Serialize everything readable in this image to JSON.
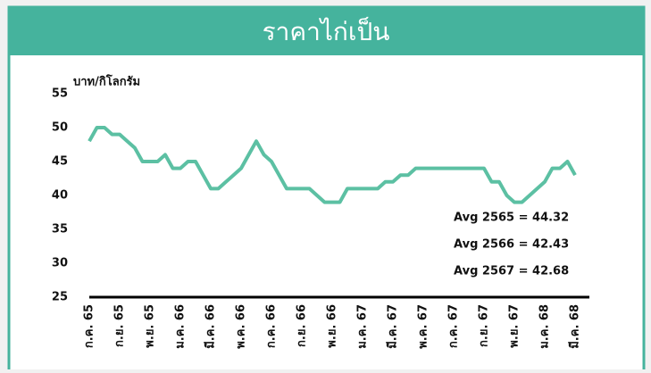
{
  "chart_data": {
    "type": "line",
    "title": "ราคาไก่เป็น",
    "y_label": "บาท/กิโลกรัม",
    "categories": [
      "ก.ค. 65",
      null,
      null,
      null,
      "ก.ย. 65",
      null,
      null,
      null,
      "พ.ย. 65",
      null,
      null,
      null,
      "ม.ค. 66",
      null,
      null,
      null,
      "มี.ค. 66",
      null,
      null,
      null,
      "พ.ค. 66",
      null,
      null,
      null,
      "ก.ค. 66",
      null,
      null,
      null,
      "ก.ย. 66",
      null,
      null,
      null,
      "พ.ย. 66",
      null,
      null,
      null,
      "ม.ค. 67",
      null,
      null,
      null,
      "มี.ค. 67",
      null,
      null,
      null,
      "พ.ค. 67",
      null,
      null,
      null,
      "ก.ค. 67",
      null,
      null,
      null,
      "ก.ย. 67",
      null,
      null,
      null,
      "พ.ย. 67",
      null,
      null,
      null,
      "ม.ค. 68",
      null,
      null,
      null,
      "มี.ค. 68"
    ],
    "series": [
      {
        "name": "ราคาไก่เป็น",
        "color": "#5cc0a3",
        "values": [
          48,
          50,
          50,
          49,
          49,
          48,
          47,
          45,
          45,
          45,
          46,
          44,
          44,
          45,
          45,
          43,
          41,
          41,
          42,
          43,
          44,
          46,
          48,
          46,
          45,
          43,
          41,
          41,
          41,
          41,
          40,
          39,
          39,
          39,
          41,
          41,
          41,
          41,
          41,
          42,
          42,
          43,
          43,
          44,
          44,
          44,
          44,
          44,
          44,
          44,
          44,
          44,
          44,
          42,
          42,
          40,
          39,
          39,
          40,
          41,
          42,
          44,
          44,
          45,
          43
        ]
      }
    ],
    "annotations": [
      "Avg 2565 = 44.32",
      "Avg 2566 = 42.43",
      "Avg 2567 = 42.68"
    ],
    "ylim": [
      25,
      55
    ],
    "yticks": [
      25,
      30,
      35,
      40,
      45,
      50,
      55
    ],
    "grid": false
  }
}
